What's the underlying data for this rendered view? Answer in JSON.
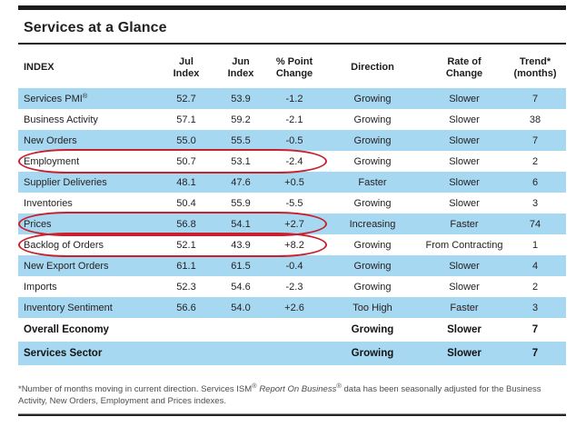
{
  "page": {
    "title": "Services at a Glance"
  },
  "colors": {
    "row_shade": "#a7d8f2",
    "highlight_circle": "#c9202e"
  },
  "table": {
    "columns": [
      {
        "id": "index",
        "line1": "INDEX",
        "line2": ""
      },
      {
        "id": "jul",
        "line1": "Jul",
        "line2": "Index"
      },
      {
        "id": "jun",
        "line1": "Jun",
        "line2": "Index"
      },
      {
        "id": "change",
        "line1": "% Point",
        "line2": "Change"
      },
      {
        "id": "direction",
        "line1": "Direction",
        "line2": ""
      },
      {
        "id": "rate",
        "line1": "Rate of",
        "line2": "Change"
      },
      {
        "id": "trend",
        "line1": "Trend*",
        "line2": "(months)"
      }
    ],
    "rows": [
      {
        "index": "Services PMI",
        "sup": "®",
        "jul": "52.7",
        "jun": "53.9",
        "change": "-1.2",
        "direction": "Growing",
        "rate": "Slower",
        "trend": "7",
        "shaded": true,
        "circled": false
      },
      {
        "index": "Business Activity",
        "jul": "57.1",
        "jun": "59.2",
        "change": "-2.1",
        "direction": "Growing",
        "rate": "Slower",
        "trend": "38",
        "shaded": false,
        "circled": false
      },
      {
        "index": "New Orders",
        "jul": "55.0",
        "jun": "55.5",
        "change": "-0.5",
        "direction": "Growing",
        "rate": "Slower",
        "trend": "7",
        "shaded": true,
        "circled": false
      },
      {
        "index": "Employment",
        "jul": "50.7",
        "jun": "53.1",
        "change": "-2.4",
        "direction": "Growing",
        "rate": "Slower",
        "trend": "2",
        "shaded": false,
        "circled": true
      },
      {
        "index": "Supplier Deliveries",
        "jul": "48.1",
        "jun": "47.6",
        "change": "+0.5",
        "direction": "Faster",
        "rate": "Slower",
        "trend": "6",
        "shaded": true,
        "circled": false
      },
      {
        "index": "Inventories",
        "jul": "50.4",
        "jun": "55.9",
        "change": "-5.5",
        "direction": "Growing",
        "rate": "Slower",
        "trend": "3",
        "shaded": false,
        "circled": false
      },
      {
        "index": "Prices",
        "jul": "56.8",
        "jun": "54.1",
        "change": "+2.7",
        "direction": "Increasing",
        "rate": "Faster",
        "trend": "74",
        "shaded": true,
        "circled": true
      },
      {
        "index": "Backlog of Orders",
        "jul": "52.1",
        "jun": "43.9",
        "change": "+8.2",
        "direction": "Growing",
        "rate": "From Contracting",
        "trend": "1",
        "shaded": false,
        "circled": true
      },
      {
        "index": "New Export Orders",
        "jul": "61.1",
        "jun": "61.5",
        "change": "-0.4",
        "direction": "Growing",
        "rate": "Slower",
        "trend": "4",
        "shaded": true,
        "circled": false
      },
      {
        "index": "Imports",
        "jul": "52.3",
        "jun": "54.6",
        "change": "-2.3",
        "direction": "Growing",
        "rate": "Slower",
        "trend": "2",
        "shaded": false,
        "circled": false
      },
      {
        "index": "Inventory Sentiment",
        "jul": "56.6",
        "jun": "54.0",
        "change": "+2.6",
        "direction": "Too High",
        "rate": "Faster",
        "trend": "3",
        "shaded": true,
        "circled": false
      }
    ],
    "summary_rows": [
      {
        "index": "Overall Economy",
        "jul": "",
        "jun": "",
        "change": "",
        "direction": "Growing",
        "rate": "Slower",
        "trend": "7",
        "shaded": false,
        "circled": false
      },
      {
        "index": "Services Sector",
        "jul": "",
        "jun": "",
        "change": "",
        "direction": "Growing",
        "rate": "Slower",
        "trend": "7",
        "shaded": true,
        "circled": false
      }
    ]
  },
  "footnote": {
    "lead": "*Number of months moving in current direction. Services ISM",
    "sup1": "®",
    "mid": " ",
    "italic": "Report On Business",
    "sup2": "®",
    "tail": " data has been seasonally adjusted for the Business Activity, New Orders, Employment and Prices indexes."
  }
}
